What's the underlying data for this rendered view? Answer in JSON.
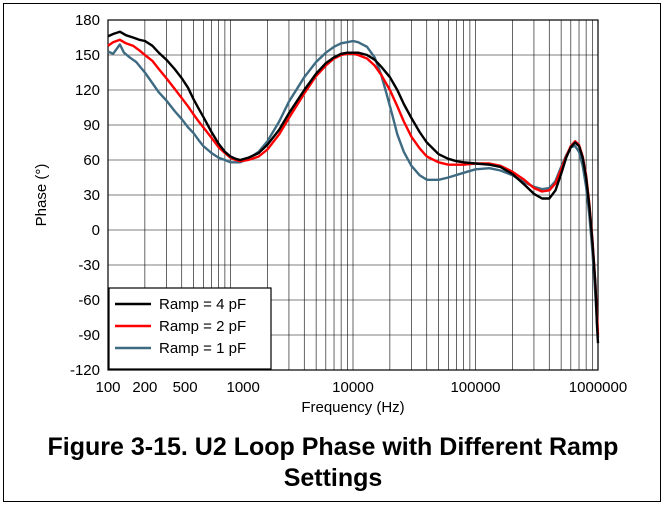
{
  "chart_data": {
    "type": "line",
    "xlabel": "Frequency (Hz)",
    "ylabel": "Phase (°)",
    "x_scale": "log",
    "xlim": [
      100,
      1000000
    ],
    "ylim": [
      -120,
      180
    ],
    "x_ticks": [
      "100",
      "200",
      "500",
      "1000",
      "10000",
      "100000",
      "1000000"
    ],
    "x_tick_values": [
      100,
      200,
      500,
      1000,
      10000,
      100000,
      1000000
    ],
    "y_ticks": [
      "180",
      "150",
      "120",
      "90",
      "60",
      "30",
      "0",
      "-30",
      "-60",
      "-90",
      "-120"
    ],
    "y_tick_values": [
      180,
      150,
      120,
      90,
      60,
      30,
      0,
      -30,
      -60,
      -90,
      -120
    ],
    "grid": true,
    "legend_position": "bottom-left",
    "series": [
      {
        "name": "Ramp = 4 pF",
        "color": "#000000",
        "points": [
          [
            100,
            166
          ],
          [
            110,
            168
          ],
          [
            125,
            170
          ],
          [
            140,
            167
          ],
          [
            160,
            165
          ],
          [
            180,
            163
          ],
          [
            200,
            162
          ],
          [
            230,
            158
          ],
          [
            260,
            152
          ],
          [
            300,
            146
          ],
          [
            350,
            138
          ],
          [
            400,
            130
          ],
          [
            450,
            122
          ],
          [
            500,
            112
          ],
          [
            550,
            104
          ],
          [
            600,
            97
          ],
          [
            700,
            84
          ],
          [
            800,
            74
          ],
          [
            900,
            67
          ],
          [
            1000,
            63
          ],
          [
            1100,
            61
          ],
          [
            1200,
            60
          ],
          [
            1400,
            62
          ],
          [
            1700,
            66
          ],
          [
            2000,
            73
          ],
          [
            2500,
            86
          ],
          [
            3000,
            100
          ],
          [
            4000,
            120
          ],
          [
            5000,
            134
          ],
          [
            6000,
            143
          ],
          [
            7000,
            148
          ],
          [
            8000,
            151
          ],
          [
            9000,
            152
          ],
          [
            10000,
            152
          ],
          [
            11000,
            152
          ],
          [
            13000,
            150
          ],
          [
            15000,
            146
          ],
          [
            17000,
            140
          ],
          [
            20000,
            131
          ],
          [
            23000,
            120
          ],
          [
            26000,
            108
          ],
          [
            30000,
            96
          ],
          [
            35000,
            84
          ],
          [
            40000,
            75
          ],
          [
            50000,
            65
          ],
          [
            60000,
            61
          ],
          [
            70000,
            59
          ],
          [
            80000,
            58
          ],
          [
            100000,
            57
          ],
          [
            130000,
            56
          ],
          [
            160000,
            54
          ],
          [
            200000,
            48
          ],
          [
            250000,
            39
          ],
          [
            300000,
            31
          ],
          [
            350000,
            27
          ],
          [
            400000,
            27
          ],
          [
            450000,
            34
          ],
          [
            500000,
            48
          ],
          [
            550000,
            62
          ],
          [
            600000,
            71
          ],
          [
            650000,
            75
          ],
          [
            700000,
            72
          ],
          [
            750000,
            62
          ],
          [
            800000,
            45
          ],
          [
            850000,
            20
          ],
          [
            900000,
            -10
          ],
          [
            950000,
            -45
          ],
          [
            980000,
            -80
          ],
          [
            1000000,
            -97
          ]
        ]
      },
      {
        "name": "Ramp = 2 pF",
        "color": "#ff0000",
        "points": [
          [
            100,
            158
          ],
          [
            110,
            161
          ],
          [
            125,
            163
          ],
          [
            140,
            160
          ],
          [
            160,
            158
          ],
          [
            180,
            154
          ],
          [
            200,
            150
          ],
          [
            230,
            145
          ],
          [
            260,
            138
          ],
          [
            300,
            130
          ],
          [
            350,
            121
          ],
          [
            400,
            113
          ],
          [
            450,
            106
          ],
          [
            500,
            99
          ],
          [
            550,
            93
          ],
          [
            600,
            88
          ],
          [
            700,
            79
          ],
          [
            800,
            71
          ],
          [
            900,
            66
          ],
          [
            1000,
            62
          ],
          [
            1100,
            60
          ],
          [
            1200,
            59
          ],
          [
            1400,
            60
          ],
          [
            1700,
            63
          ],
          [
            2000,
            69
          ],
          [
            2500,
            82
          ],
          [
            3000,
            96
          ],
          [
            4000,
            117
          ],
          [
            5000,
            132
          ],
          [
            6000,
            141
          ],
          [
            7000,
            147
          ],
          [
            8000,
            150
          ],
          [
            9000,
            151
          ],
          [
            10000,
            151
          ],
          [
            11000,
            150
          ],
          [
            13000,
            147
          ],
          [
            15000,
            141
          ],
          [
            17000,
            133
          ],
          [
            20000,
            120
          ],
          [
            23000,
            106
          ],
          [
            26000,
            93
          ],
          [
            30000,
            80
          ],
          [
            35000,
            70
          ],
          [
            40000,
            63
          ],
          [
            50000,
            58
          ],
          [
            60000,
            56
          ],
          [
            80000,
            56
          ],
          [
            100000,
            57
          ],
          [
            130000,
            57
          ],
          [
            160000,
            55
          ],
          [
            200000,
            50
          ],
          [
            250000,
            43
          ],
          [
            300000,
            36
          ],
          [
            350000,
            33
          ],
          [
            400000,
            34
          ],
          [
            450000,
            40
          ],
          [
            500000,
            52
          ],
          [
            550000,
            63
          ],
          [
            600000,
            72
          ],
          [
            650000,
            76
          ],
          [
            700000,
            73
          ],
          [
            750000,
            63
          ],
          [
            800000,
            47
          ],
          [
            850000,
            22
          ],
          [
            900000,
            -8
          ],
          [
            950000,
            -45
          ],
          [
            1000000,
            -90
          ]
        ]
      },
      {
        "name": "Ramp = 1 pF",
        "color": "#3e6b82",
        "points": [
          [
            100,
            153
          ],
          [
            110,
            151
          ],
          [
            125,
            159
          ],
          [
            135,
            152
          ],
          [
            150,
            148
          ],
          [
            170,
            144
          ],
          [
            200,
            135
          ],
          [
            230,
            126
          ],
          [
            260,
            118
          ],
          [
            300,
            111
          ],
          [
            350,
            102
          ],
          [
            400,
            95
          ],
          [
            450,
            88
          ],
          [
            500,
            83
          ],
          [
            550,
            77
          ],
          [
            600,
            72
          ],
          [
            700,
            66
          ],
          [
            800,
            62
          ],
          [
            900,
            60
          ],
          [
            1000,
            58
          ],
          [
            1100,
            58
          ],
          [
            1200,
            58
          ],
          [
            1400,
            61
          ],
          [
            1700,
            67
          ],
          [
            2000,
            76
          ],
          [
            2500,
            93
          ],
          [
            3000,
            110
          ],
          [
            4000,
            131
          ],
          [
            5000,
            144
          ],
          [
            6000,
            152
          ],
          [
            7000,
            157
          ],
          [
            8000,
            160
          ],
          [
            9000,
            161
          ],
          [
            10000,
            162
          ],
          [
            11000,
            161
          ],
          [
            13000,
            157
          ],
          [
            15000,
            148
          ],
          [
            17000,
            133
          ],
          [
            19000,
            115
          ],
          [
            21000,
            98
          ],
          [
            23000,
            82
          ],
          [
            26000,
            67
          ],
          [
            30000,
            55
          ],
          [
            35000,
            47
          ],
          [
            40000,
            43
          ],
          [
            50000,
            43
          ],
          [
            60000,
            45
          ],
          [
            80000,
            49
          ],
          [
            100000,
            52
          ],
          [
            130000,
            53
          ],
          [
            160000,
            51
          ],
          [
            200000,
            47
          ],
          [
            250000,
            41
          ],
          [
            300000,
            37
          ],
          [
            350000,
            35
          ],
          [
            400000,
            36
          ],
          [
            450000,
            42
          ],
          [
            500000,
            54
          ],
          [
            550000,
            64
          ],
          [
            600000,
            71
          ],
          [
            650000,
            72
          ],
          [
            700000,
            67
          ],
          [
            750000,
            55
          ],
          [
            800000,
            37
          ],
          [
            850000,
            12
          ],
          [
            900000,
            -18
          ],
          [
            950000,
            -55
          ],
          [
            1000000,
            -92
          ]
        ]
      }
    ]
  },
  "caption": {
    "line1": "Figure 3-15. U2 Loop Phase with Different Ramp",
    "line2": "Settings"
  }
}
